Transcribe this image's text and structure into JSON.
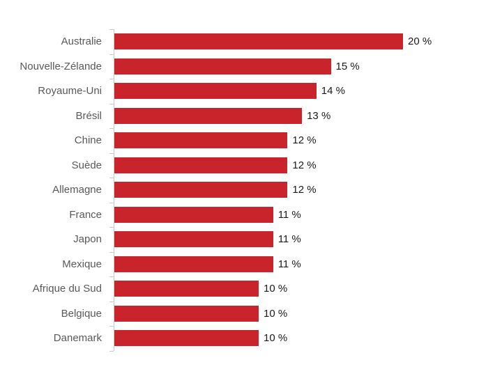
{
  "chart_data": {
    "type": "bar",
    "orientation": "horizontal",
    "title": "",
    "categories": [
      "Australie",
      "Nouvelle-Zélande",
      "Royaume-Uni",
      "Brésil",
      "Chine",
      "Suède",
      "Allemagne",
      "France",
      "Japon",
      "Mexique",
      "Afrique du Sud",
      "Belgique",
      "Danemark"
    ],
    "values": [
      20,
      15,
      14,
      13,
      12,
      12,
      12,
      11,
      11,
      11,
      10,
      10,
      10
    ],
    "value_labels": [
      "20 %",
      "15 %",
      "14 %",
      "13 %",
      "12 %",
      "12 %",
      "12 %",
      "11 %",
      "11 %",
      "11 %",
      "10 %",
      "10 %",
      "10 %"
    ],
    "unit": "%",
    "xlim": [
      0,
      20
    ],
    "grid": false,
    "legend": null,
    "bar_color": "#C9232C",
    "axis_color": "#C9C9C9",
    "category_label_color": "#595959",
    "value_label_color": "#1A1A1A",
    "background_color": "#FFFFFF"
  }
}
